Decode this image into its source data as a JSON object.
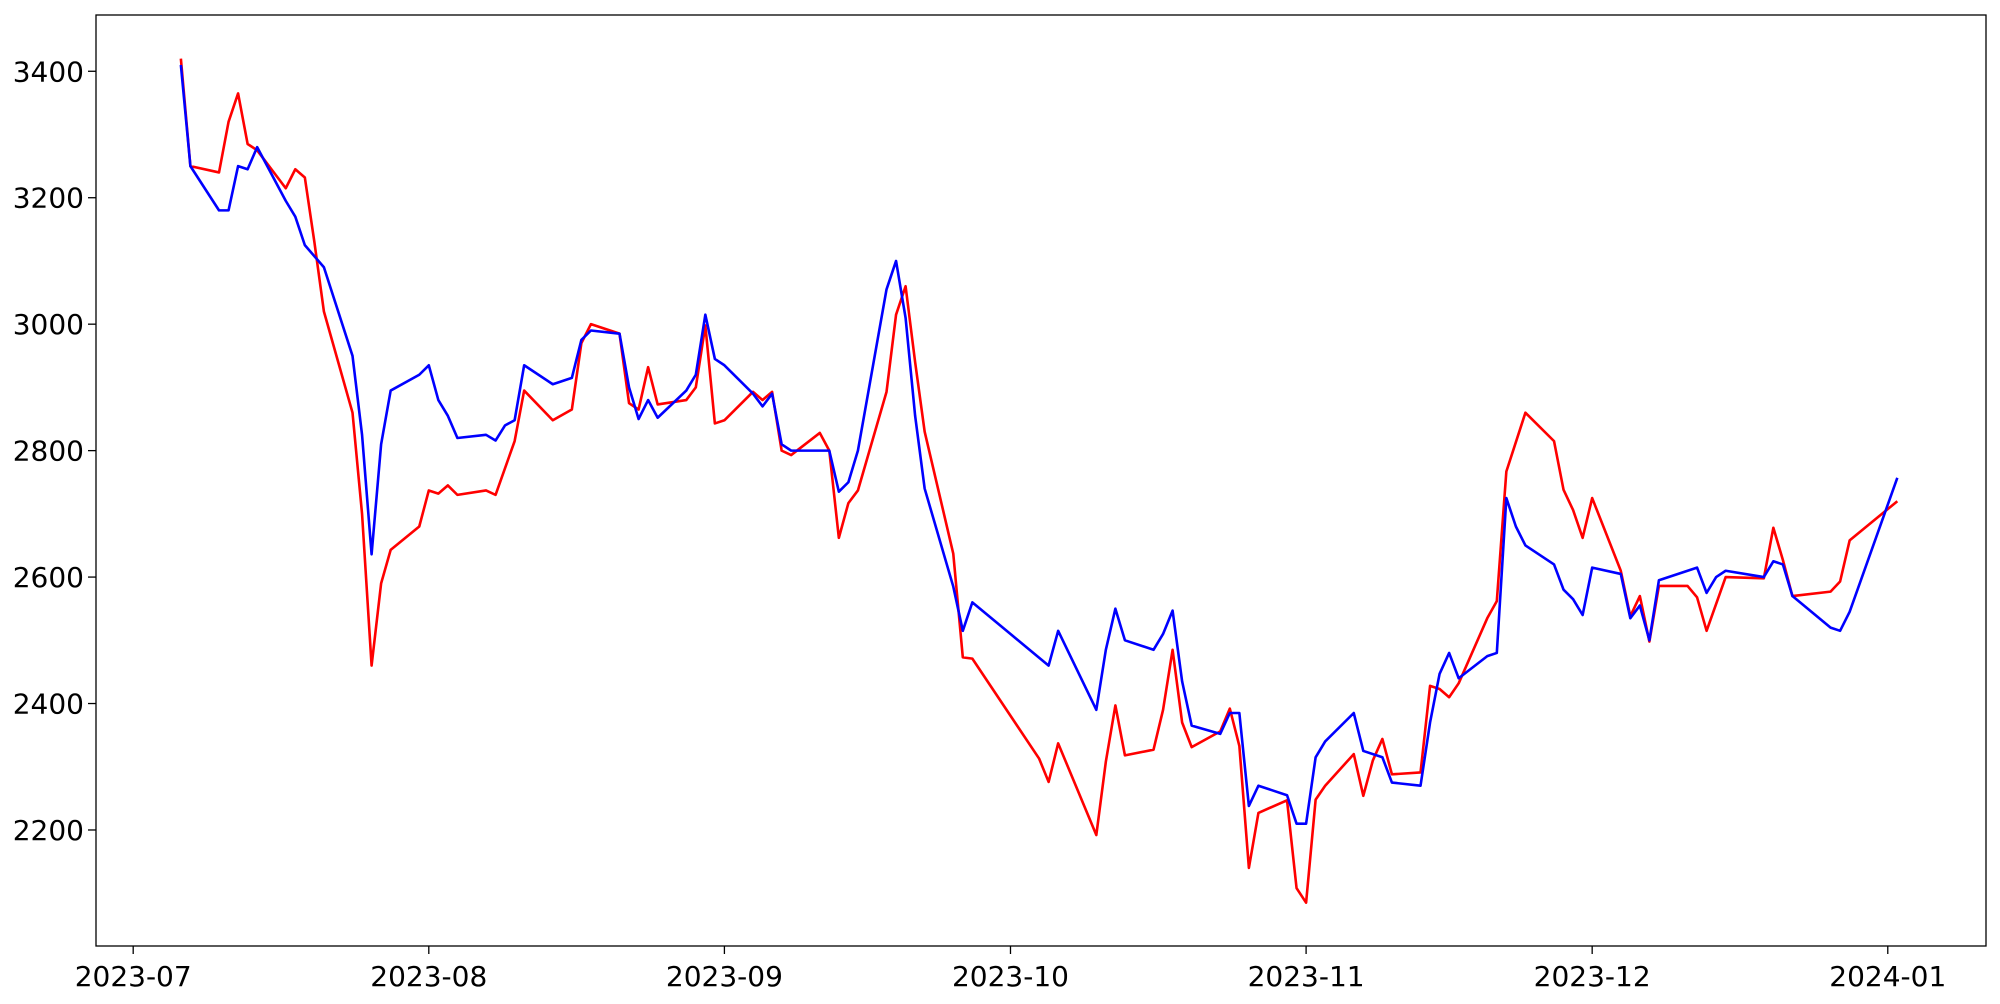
{
  "chart_data": {
    "type": "line",
    "xlim": [
      19535.1,
      19733.3
    ],
    "ylim": [
      2016.5,
      3489
    ],
    "xticks": [
      {
        "value": 19539,
        "label": "2023-07"
      },
      {
        "value": 19570,
        "label": "2023-08"
      },
      {
        "value": 19601,
        "label": "2023-09"
      },
      {
        "value": 19631,
        "label": "2023-10"
      },
      {
        "value": 19662,
        "label": "2023-11"
      },
      {
        "value": 19692,
        "label": "2023-12"
      },
      {
        "value": 19723,
        "label": "2024-01"
      }
    ],
    "yticks": [
      2200,
      2400,
      2600,
      2800,
      3000,
      3200,
      3400
    ],
    "grid": false,
    "series": [
      {
        "color": "#ff0000",
        "x": [
          19544,
          19545,
          19548,
          19549,
          19550,
          19551,
          19552,
          19555,
          19556,
          19557,
          19558,
          19559,
          19562,
          19563,
          19564,
          19565,
          19566,
          19569,
          19570,
          19571,
          19572,
          19573,
          19576,
          19577,
          19579,
          19580,
          19583,
          19585,
          19586,
          19587,
          19590,
          19591,
          19592,
          19593,
          19594,
          19597,
          19598,
          19599,
          19600,
          19601,
          19604,
          19605,
          19606,
          19607,
          19608,
          19611,
          19612,
          19613,
          19614,
          19615,
          19618,
          19619,
          19620,
          19621,
          19622,
          19625,
          19626,
          19627,
          19634,
          19635,
          19636,
          19640,
          19641,
          19642,
          19643,
          19646,
          19647,
          19648,
          19649,
          19650,
          19653,
          19654,
          19655,
          19656,
          19657,
          19660,
          19661,
          19662,
          19663,
          19664,
          19667,
          19668,
          19669,
          19670,
          19671,
          19674,
          19675,
          19676,
          19677,
          19678,
          19681,
          19682,
          19683,
          19685,
          19688,
          19689,
          19690,
          19691,
          19692,
          19695,
          19696,
          19697,
          19698,
          19699,
          19702,
          19703,
          19704,
          19706,
          19710,
          19711,
          19712,
          19713,
          19717,
          19718,
          19719,
          19724
        ],
        "values": [
          3420,
          3250,
          3240,
          3320,
          3365,
          3285,
          3275,
          3215,
          3245,
          3232,
          3130,
          3020,
          2860,
          2700,
          2460,
          2590,
          2643,
          2680,
          2737,
          2732,
          2745,
          2730,
          2737,
          2730,
          2815,
          2895,
          2848,
          2865,
          2970,
          3000,
          2985,
          2875,
          2865,
          2932,
          2873,
          2880,
          2900,
          2998,
          2843,
          2848,
          2893,
          2880,
          2893,
          2800,
          2793,
          2828,
          2800,
          2662,
          2717,
          2737,
          2893,
          3015,
          3060,
          2940,
          2830,
          2637,
          2473,
          2471,
          2313,
          2276,
          2337,
          2192,
          2308,
          2397,
          2318,
          2327,
          2390,
          2485,
          2370,
          2331,
          2356,
          2392,
          2333,
          2140,
          2227,
          2247,
          2108,
          2085,
          2248,
          2270,
          2320,
          2254,
          2310,
          2344,
          2288,
          2291,
          2428,
          2423,
          2410,
          2432,
          2535,
          2562,
          2767,
          2860,
          2815,
          2738,
          2706,
          2662,
          2725,
          2610,
          2538,
          2570,
          2498,
          2586,
          2586,
          2568,
          2515,
          2600,
          2598,
          2678,
          2627,
          2570,
          2577,
          2593,
          2658,
          2720
        ]
      },
      {
        "color": "#0000ff",
        "x": [
          19544,
          19545,
          19548,
          19549,
          19550,
          19551,
          19552,
          19555,
          19556,
          19557,
          19559,
          19562,
          19563,
          19564,
          19565,
          19566,
          19569,
          19570,
          19571,
          19572,
          19573,
          19576,
          19577,
          19578,
          19579,
          19580,
          19583,
          19585,
          19586,
          19587,
          19590,
          19591,
          19592,
          19593,
          19594,
          19597,
          19598,
          19599,
          19600,
          19601,
          19604,
          19605,
          19606,
          19607,
          19608,
          19611,
          19612,
          19613,
          19614,
          19615,
          19618,
          19619,
          19620,
          19621,
          19622,
          19625,
          19626,
          19627,
          19635,
          19636,
          19640,
          19641,
          19642,
          19643,
          19646,
          19647,
          19648,
          19649,
          19650,
          19653,
          19654,
          19655,
          19656,
          19657,
          19660,
          19661,
          19662,
          19663,
          19664,
          19667,
          19668,
          19670,
          19671,
          19674,
          19675,
          19676,
          19677,
          19678,
          19681,
          19682,
          19683,
          19684,
          19685,
          19688,
          19689,
          19690,
          19691,
          19692,
          19695,
          19696,
          19697,
          19698,
          19699,
          19703,
          19704,
          19705,
          19706,
          19710,
          19711,
          19712,
          19713,
          19717,
          19718,
          19719,
          19724
        ],
        "values": [
          3410,
          3250,
          3180,
          3180,
          3250,
          3245,
          3280,
          3195,
          3170,
          3125,
          3090,
          2950,
          2825,
          2636,
          2810,
          2895,
          2920,
          2935,
          2880,
          2855,
          2820,
          2825,
          2816,
          2840,
          2848,
          2935,
          2905,
          2915,
          2975,
          2990,
          2985,
          2900,
          2850,
          2880,
          2852,
          2895,
          2920,
          3015,
          2945,
          2935,
          2890,
          2870,
          2890,
          2810,
          2800,
          2800,
          2800,
          2735,
          2750,
          2800,
          3055,
          3100,
          3010,
          2855,
          2740,
          2585,
          2515,
          2560,
          2460,
          2515,
          2390,
          2485,
          2550,
          2500,
          2485,
          2510,
          2547,
          2435,
          2365,
          2352,
          2385,
          2385,
          2238,
          2270,
          2255,
          2210,
          2210,
          2315,
          2340,
          2385,
          2325,
          2315,
          2275,
          2270,
          2370,
          2447,
          2480,
          2440,
          2475,
          2480,
          2725,
          2680,
          2650,
          2620,
          2580,
          2565,
          2540,
          2615,
          2605,
          2535,
          2555,
          2500,
          2595,
          2615,
          2575,
          2600,
          2610,
          2600,
          2625,
          2620,
          2570,
          2520,
          2515,
          2545,
          2757
        ]
      }
    ]
  }
}
